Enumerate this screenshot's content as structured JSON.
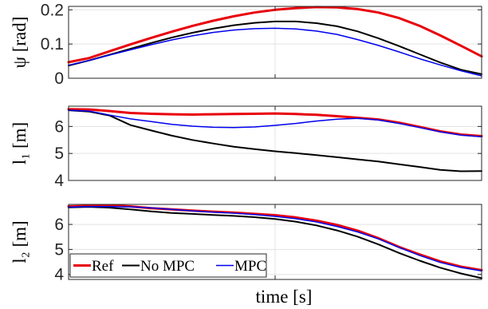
{
  "chart_data": [
    {
      "type": "line",
      "ylabel": "ψ [rad]",
      "ylim": [
        0,
        0.21
      ],
      "yticks": [
        0,
        0.1,
        0.2
      ],
      "ytick_labels": [
        "0",
        "0.1",
        "0.2"
      ],
      "grid": true,
      "x": [
        0,
        0.05,
        0.1,
        0.15,
        0.2,
        0.25,
        0.3,
        0.35,
        0.4,
        0.45,
        0.5,
        0.55,
        0.6,
        0.65,
        0.7,
        0.75,
        0.8,
        0.85,
        0.9,
        0.95,
        1.0
      ],
      "series": [
        {
          "name": "Ref",
          "color": "#e8000b",
          "width": 3,
          "values": [
            0.047,
            0.059,
            0.079,
            0.099,
            0.118,
            0.136,
            0.153,
            0.168,
            0.181,
            0.192,
            0.2,
            0.205,
            0.208,
            0.207,
            0.202,
            0.192,
            0.176,
            0.153,
            0.125,
            0.095,
            0.064
          ]
        },
        {
          "name": "No MPC",
          "color": "#000000",
          "width": 2,
          "values": [
            0.037,
            0.052,
            0.069,
            0.086,
            0.103,
            0.119,
            0.133,
            0.145,
            0.155,
            0.162,
            0.166,
            0.166,
            0.161,
            0.152,
            0.137,
            0.117,
            0.094,
            0.07,
            0.046,
            0.025,
            0.012
          ]
        },
        {
          "name": "MPC",
          "color": "#0000ee",
          "width": 1.5,
          "values": [
            0.038,
            0.052,
            0.068,
            0.083,
            0.098,
            0.112,
            0.124,
            0.134,
            0.141,
            0.145,
            0.146,
            0.144,
            0.138,
            0.128,
            0.113,
            0.096,
            0.077,
            0.057,
            0.039,
            0.022,
            0.007
          ]
        }
      ]
    },
    {
      "type": "line",
      "ylabel": "l₁ [m]",
      "ylim": [
        4,
        6.75
      ],
      "yticks": [
        4,
        5,
        6
      ],
      "ytick_labels": [
        "4",
        "5",
        "6"
      ],
      "grid": true,
      "x": [
        0,
        0.05,
        0.1,
        0.15,
        0.2,
        0.25,
        0.3,
        0.35,
        0.4,
        0.45,
        0.5,
        0.55,
        0.6,
        0.65,
        0.7,
        0.75,
        0.8,
        0.85,
        0.9,
        0.95,
        1.0
      ],
      "series": [
        {
          "name": "Ref",
          "color": "#e8000b",
          "width": 3,
          "values": [
            6.64,
            6.63,
            6.57,
            6.5,
            6.47,
            6.45,
            6.44,
            6.45,
            6.46,
            6.47,
            6.48,
            6.46,
            6.43,
            6.38,
            6.32,
            6.26,
            6.14,
            5.98,
            5.82,
            5.7,
            5.64
          ]
        },
        {
          "name": "No MPC",
          "color": "#000000",
          "width": 2,
          "values": [
            6.6,
            6.55,
            6.4,
            6.05,
            5.85,
            5.66,
            5.5,
            5.37,
            5.25,
            5.16,
            5.08,
            5.01,
            4.94,
            4.86,
            4.78,
            4.7,
            4.6,
            4.5,
            4.39,
            4.34,
            4.35
          ]
        },
        {
          "name": "MPC",
          "color": "#0000ee",
          "width": 1.5,
          "values": [
            6.6,
            6.57,
            6.42,
            6.28,
            6.18,
            6.08,
            6.01,
            5.97,
            5.96,
            5.98,
            6.04,
            6.11,
            6.2,
            6.27,
            6.3,
            6.24,
            6.11,
            5.96,
            5.8,
            5.68,
            5.62
          ]
        }
      ]
    },
    {
      "type": "line",
      "ylabel": "l₂ [m]",
      "xlabel": "time [s]",
      "ylim": [
        3.8,
        6.8
      ],
      "yticks": [
        4,
        5,
        6
      ],
      "ytick_labels": [
        "4",
        "5",
        "6"
      ],
      "grid": true,
      "legend": {
        "placement": "bottom-left",
        "orientation": "horizontal"
      },
      "x": [
        0,
        0.05,
        0.1,
        0.15,
        0.2,
        0.25,
        0.3,
        0.35,
        0.4,
        0.45,
        0.5,
        0.55,
        0.6,
        0.65,
        0.7,
        0.75,
        0.8,
        0.85,
        0.9,
        0.95,
        1.0
      ],
      "series": [
        {
          "name": "Ref",
          "color": "#e8000b",
          "width": 3,
          "values": [
            6.72,
            6.74,
            6.76,
            6.72,
            6.65,
            6.6,
            6.55,
            6.51,
            6.47,
            6.42,
            6.37,
            6.28,
            6.15,
            5.98,
            5.75,
            5.45,
            5.1,
            4.8,
            4.52,
            4.31,
            4.17
          ]
        },
        {
          "name": "No MPC",
          "color": "#000000",
          "width": 2,
          "values": [
            6.68,
            6.7,
            6.67,
            6.6,
            6.52,
            6.46,
            6.42,
            6.38,
            6.34,
            6.29,
            6.22,
            6.11,
            5.96,
            5.76,
            5.51,
            5.2,
            4.86,
            4.55,
            4.27,
            4.04,
            3.85
          ]
        },
        {
          "name": "MPC",
          "color": "#0000ee",
          "width": 1.5,
          "values": [
            6.69,
            6.71,
            6.71,
            6.7,
            6.66,
            6.6,
            6.54,
            6.49,
            6.45,
            6.39,
            6.32,
            6.23,
            6.1,
            5.92,
            5.7,
            5.42,
            5.08,
            4.76,
            4.48,
            4.28,
            4.14
          ]
        }
      ]
    }
  ]
}
